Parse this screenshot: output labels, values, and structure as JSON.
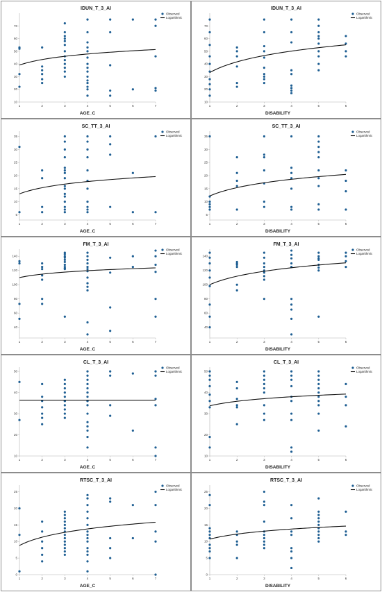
{
  "colors": {
    "observed": "#1f5f93",
    "curve": "#111111",
    "frame": "#8c8c8c",
    "axis": "#b0b0b0"
  },
  "legend": {
    "observed_label": "Observed",
    "fit_label": "Logarithmic",
    "position": "top-right"
  },
  "chart_data": [
    {
      "type": "scatter",
      "title": "IDUN_T_3_AI",
      "xlabel": "AGE_C",
      "xlim": [
        1,
        7
      ],
      "ylim": [
        10,
        80
      ],
      "xticks": [
        1,
        2,
        3,
        4,
        5,
        6,
        7
      ],
      "yticks": [
        10,
        20,
        30,
        40,
        50,
        60,
        70
      ],
      "fit": {
        "a": 39.1,
        "b": 6.3
      },
      "x": [
        1,
        1,
        1,
        1,
        2,
        2,
        2,
        2,
        2,
        2,
        3,
        3,
        3,
        3,
        3,
        3,
        3,
        3,
        3,
        3,
        3,
        3,
        3,
        4,
        4,
        4,
        4,
        4,
        4,
        4,
        4,
        4,
        4,
        4,
        4,
        4,
        4,
        4,
        5,
        5,
        5,
        5,
        5,
        6,
        6,
        7,
        7,
        7,
        7,
        7
      ],
      "y": [
        53,
        52,
        32,
        22,
        53,
        38,
        35,
        32,
        28,
        25,
        72,
        65,
        62,
        60,
        58,
        55,
        50,
        46,
        43,
        40,
        37,
        34,
        30,
        75,
        65,
        57,
        53,
        50,
        45,
        40,
        37,
        34,
        30,
        27,
        25,
        22,
        20,
        15,
        75,
        65,
        39,
        19,
        15,
        75,
        20,
        75,
        70,
        46,
        21,
        19
      ]
    },
    {
      "type": "scatter",
      "title": "IDUN_T_3_AI",
      "xlabel": "DISABILITY",
      "xlim": [
        1,
        6
      ],
      "ylim": [
        10,
        80
      ],
      "xticks": [
        1,
        2,
        3,
        4,
        5,
        6
      ],
      "yticks": [
        10,
        20,
        30,
        40,
        50,
        60,
        70
      ],
      "fit": {
        "a": 33.2,
        "b": 12.2
      },
      "x": [
        1,
        1,
        1,
        1,
        1,
        1,
        1,
        1,
        1,
        1,
        2,
        2,
        2,
        2,
        2,
        2,
        3,
        3,
        3,
        3,
        3,
        3,
        3,
        3,
        3,
        3,
        4,
        4,
        4,
        4,
        4,
        4,
        4,
        4,
        4,
        5,
        5,
        5,
        5,
        5,
        5,
        5,
        5,
        5,
        5,
        6,
        6,
        6,
        6
      ],
      "y": [
        75,
        65,
        55,
        46,
        40,
        34,
        28,
        24,
        20,
        15,
        53,
        50,
        46,
        38,
        25,
        22,
        75,
        65,
        54,
        50,
        45,
        37,
        32,
        30,
        28,
        25,
        75,
        65,
        57,
        35,
        32,
        23,
        21,
        19,
        17,
        75,
        70,
        65,
        62,
        60,
        56,
        50,
        46,
        40,
        35,
        62,
        56,
        50,
        46
      ]
    },
    {
      "type": "scatter",
      "title": "SC_TT_3_AI",
      "xlabel": "AGE_C",
      "xlim": [
        1,
        7
      ],
      "ylim": [
        3,
        37
      ],
      "xticks": [
        1,
        2,
        3,
        4,
        5,
        6,
        7
      ],
      "yticks": [
        5,
        10,
        15,
        20,
        25,
        30,
        35
      ],
      "fit": {
        "a": 13.0,
        "b": 3.4
      },
      "x": [
        1,
        1,
        2,
        2,
        2,
        2,
        3,
        3,
        3,
        3,
        3,
        3,
        3,
        3,
        3,
        3,
        3,
        3,
        3,
        3,
        3,
        3,
        4,
        4,
        4,
        4,
        4,
        4,
        4,
        4,
        4,
        4,
        4,
        5,
        5,
        5,
        5,
        6,
        6,
        7,
        7
      ],
      "y": [
        31,
        6,
        22,
        19,
        8,
        6,
        35,
        33,
        30,
        27,
        23,
        22,
        21,
        19,
        16,
        15,
        13,
        12,
        10,
        8,
        7,
        6,
        35,
        33,
        30,
        27,
        22,
        18,
        15,
        10,
        8,
        7,
        6,
        35,
        32,
        28,
        8,
        21,
        6,
        35,
        6
      ]
    },
    {
      "type": "scatter",
      "title": "SC_TT_3_AI",
      "xlabel": "DISABILITY",
      "xlim": [
        1,
        6
      ],
      "ylim": [
        3,
        37
      ],
      "xticks": [
        1,
        2,
        3,
        4,
        5,
        6
      ],
      "yticks": [
        5,
        10,
        15,
        20,
        25,
        30,
        35
      ],
      "fit": {
        "a": 12.2,
        "b": 4.6
      },
      "x": [
        1,
        1,
        1,
        1,
        1,
        1,
        2,
        2,
        2,
        2,
        2,
        3,
        3,
        3,
        3,
        3,
        3,
        3,
        4,
        4,
        4,
        4,
        4,
        4,
        4,
        5,
        5,
        5,
        5,
        5,
        5,
        5,
        5,
        5,
        5,
        6,
        6,
        6,
        6
      ],
      "y": [
        35,
        12,
        10,
        9,
        8,
        7,
        27,
        21,
        18,
        16,
        7,
        35,
        28,
        27,
        22,
        17,
        10,
        8,
        35,
        23,
        21,
        19,
        15,
        8,
        7,
        35,
        33,
        31,
        29,
        27,
        22,
        19,
        16,
        9,
        7,
        22,
        18,
        14,
        7
      ]
    },
    {
      "type": "scatter",
      "title": "FM_T_3_AI",
      "xlabel": "AGE_C",
      "xlim": [
        1,
        7
      ],
      "ylim": [
        25,
        150
      ],
      "xticks": [
        1,
        2,
        3,
        4,
        5,
        6,
        7
      ],
      "yticks": [
        40,
        60,
        80,
        100,
        120,
        140
      ],
      "fit": {
        "a": 110.0,
        "b": 7.0
      },
      "x": [
        1,
        1,
        1,
        1,
        2,
        2,
        2,
        2,
        2,
        2,
        2,
        3,
        3,
        3,
        3,
        3,
        3,
        3,
        3,
        3,
        3,
        3,
        4,
        4,
        4,
        4,
        4,
        4,
        4,
        4,
        4,
        4,
        4,
        4,
        4,
        5,
        5,
        5,
        5,
        6,
        6,
        7,
        7,
        7,
        7,
        7,
        7
      ],
      "y": [
        133,
        130,
        73,
        52,
        130,
        125,
        122,
        113,
        107,
        80,
        73,
        145,
        143,
        140,
        138,
        135,
        132,
        128,
        125,
        123,
        122,
        55,
        145,
        140,
        135,
        130,
        125,
        122,
        119,
        110,
        102,
        97,
        92,
        47,
        30,
        138,
        117,
        68,
        35,
        140,
        125,
        148,
        140,
        128,
        118,
        80,
        55
      ]
    },
    {
      "type": "scatter",
      "title": "FM_T_3_AI",
      "xlabel": "DISABILITY",
      "xlim": [
        1,
        6
      ],
      "ylim": [
        25,
        150
      ],
      "xticks": [
        1,
        2,
        3,
        4,
        5,
        6
      ],
      "yticks": [
        40,
        60,
        80,
        100,
        120,
        140
      ],
      "fit": {
        "a": 100.0,
        "b": 17.2
      },
      "x": [
        1,
        1,
        1,
        1,
        1,
        1,
        1,
        1,
        1,
        2,
        2,
        2,
        2,
        2,
        2,
        3,
        3,
        3,
        3,
        3,
        3,
        3,
        3,
        3,
        4,
        4,
        4,
        4,
        4,
        4,
        4,
        4,
        4,
        4,
        5,
        5,
        5,
        5,
        5,
        5,
        5,
        5,
        6,
        6,
        6,
        6
      ],
      "y": [
        145,
        138,
        130,
        120,
        110,
        98,
        72,
        55,
        40,
        132,
        130,
        128,
        125,
        100,
        92,
        145,
        138,
        130,
        125,
        120,
        117,
        112,
        107,
        80,
        148,
        142,
        137,
        130,
        125,
        80,
        72,
        65,
        52,
        30,
        145,
        140,
        137,
        135,
        128,
        124,
        120,
        55,
        145,
        140,
        133,
        125
      ]
    },
    {
      "type": "scatter",
      "title": "CL_T_3_AI",
      "xlabel": "AGE_C",
      "xlim": [
        1,
        7
      ],
      "ylim": [
        10,
        52
      ],
      "xticks": [
        1,
        2,
        3,
        4,
        5,
        6,
        7
      ],
      "yticks": [
        10,
        20,
        30,
        40,
        50
      ],
      "fit": {
        "a": 36.4,
        "b": 0.0
      },
      "x": [
        1,
        1,
        2,
        2,
        2,
        2,
        2,
        2,
        2,
        3,
        3,
        3,
        3,
        3,
        3,
        3,
        3,
        3,
        3,
        3,
        4,
        4,
        4,
        4,
        4,
        4,
        4,
        4,
        4,
        4,
        4,
        4,
        4,
        4,
        4,
        4,
        5,
        5,
        5,
        5,
        6,
        6,
        7,
        7,
        7,
        7,
        7,
        7
      ],
      "y": [
        45,
        27,
        44,
        38,
        36,
        33,
        30,
        28,
        25,
        46,
        44,
        42,
        40,
        38,
        36,
        34,
        32,
        30,
        28,
        36,
        50,
        48,
        46,
        44,
        42,
        40,
        38,
        36,
        34,
        30,
        26,
        24,
        22,
        19,
        14,
        36,
        50,
        48,
        34,
        29,
        49,
        22,
        50,
        48,
        37,
        34,
        14,
        10
      ]
    },
    {
      "type": "scatter",
      "title": "CL_T_3_AI",
      "xlabel": "DISABILITY",
      "xlim": [
        1,
        6
      ],
      "ylim": [
        10,
        52
      ],
      "xticks": [
        1,
        2,
        3,
        4,
        5,
        6
      ],
      "yticks": [
        10,
        20,
        30,
        40,
        50
      ],
      "fit": {
        "a": 33.7,
        "b": 3.1
      },
      "x": [
        1,
        1,
        1,
        1,
        1,
        1,
        1,
        1,
        1,
        2,
        2,
        2,
        2,
        2,
        2,
        3,
        3,
        3,
        3,
        3,
        3,
        3,
        3,
        3,
        4,
        4,
        4,
        4,
        4,
        4,
        4,
        4,
        4,
        4,
        5,
        5,
        5,
        5,
        5,
        5,
        5,
        5,
        5,
        5,
        5,
        6,
        6,
        6,
        6
      ],
      "y": [
        50,
        48,
        46,
        43,
        39,
        36,
        33,
        19,
        14,
        45,
        42,
        37,
        34,
        33,
        25,
        50,
        48,
        46,
        44,
        42,
        40,
        34,
        30,
        27,
        50,
        48,
        46,
        43,
        38,
        36,
        30,
        27,
        14,
        12,
        50,
        48,
        46,
        44,
        42,
        40,
        38,
        36,
        34,
        30,
        22,
        44,
        38,
        34,
        24
      ]
    },
    {
      "type": "scatter",
      "title": "RTSC_T_3_AI",
      "xlabel": "AGE_C",
      "xlim": [
        1,
        7
      ],
      "ylim": [
        0,
        27
      ],
      "xticks": [
        1,
        2,
        3,
        4,
        5,
        6,
        7
      ],
      "yticks": [
        0,
        5,
        10,
        15,
        20,
        25
      ],
      "fit": {
        "a": 8.8,
        "b": 3.6
      },
      "x": [
        1,
        1,
        1,
        2,
        2,
        2,
        2,
        2,
        2,
        3,
        3,
        3,
        3,
        3,
        3,
        3,
        3,
        3,
        3,
        3,
        3,
        3,
        3,
        4,
        4,
        4,
        4,
        4,
        4,
        4,
        4,
        4,
        4,
        4,
        4,
        4,
        4,
        4,
        5,
        5,
        5,
        5,
        5,
        6,
        6,
        7,
        7,
        7,
        7,
        7
      ],
      "y": [
        20,
        12,
        1,
        16,
        13,
        10,
        8,
        6,
        4,
        19,
        18,
        17,
        16,
        15,
        14,
        13,
        12,
        11,
        10,
        9,
        8,
        7,
        6,
        24,
        23,
        21,
        19,
        17,
        15,
        13,
        12,
        11,
        10,
        8,
        7,
        6,
        4,
        1,
        23,
        22,
        11,
        8,
        5,
        21,
        11,
        25,
        21,
        13,
        10,
        0
      ]
    },
    {
      "type": "scatter",
      "title": "RTSC_T_3_AI",
      "xlabel": "DISABILITY",
      "xlim": [
        1,
        6
      ],
      "ylim": [
        0,
        27
      ],
      "xticks": [
        1,
        2,
        3,
        4,
        5,
        6
      ],
      "yticks": [
        0,
        5,
        10,
        15,
        20,
        25
      ],
      "fit": {
        "a": 10.7,
        "b": 2.2
      },
      "x": [
        1,
        1,
        1,
        1,
        1,
        1,
        1,
        1,
        1,
        1,
        2,
        2,
        2,
        2,
        2,
        3,
        3,
        3,
        3,
        3,
        3,
        3,
        3,
        3,
        3,
        4,
        4,
        4,
        4,
        4,
        4,
        4,
        4,
        5,
        5,
        5,
        5,
        5,
        5,
        5,
        5,
        5,
        5,
        5,
        6,
        6,
        6
      ],
      "y": [
        24,
        21,
        14,
        13,
        12,
        11,
        9,
        8,
        7,
        5,
        13,
        12,
        10,
        9,
        5,
        25,
        22,
        21,
        16,
        13,
        12,
        11,
        10,
        9,
        8,
        21,
        17,
        13,
        12,
        8,
        7,
        5,
        2,
        23,
        19,
        18,
        17,
        16,
        15,
        14,
        13,
        12,
        11,
        10,
        19,
        13,
        12
      ]
    }
  ]
}
